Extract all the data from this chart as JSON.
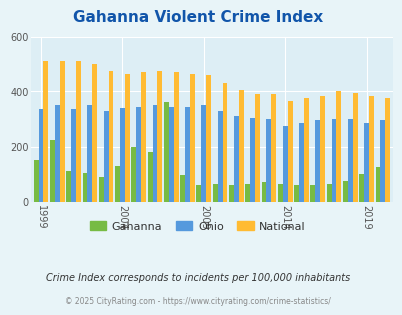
{
  "title": "Gahanna Violent Crime Index",
  "years": [
    1999,
    2000,
    2001,
    2002,
    2003,
    2004,
    2005,
    2006,
    2007,
    2008,
    2009,
    2010,
    2011,
    2012,
    2013,
    2014,
    2015,
    2016,
    2017,
    2018,
    2019,
    2020
  ],
  "gahanna": [
    150,
    225,
    110,
    105,
    90,
    130,
    200,
    180,
    360,
    95,
    60,
    65,
    60,
    65,
    70,
    65,
    60,
    60,
    65,
    75,
    100,
    125
  ],
  "ohio": [
    335,
    350,
    335,
    350,
    330,
    340,
    345,
    350,
    345,
    345,
    350,
    330,
    310,
    305,
    300,
    275,
    285,
    295,
    300,
    300,
    285,
    295
  ],
  "national": [
    510,
    510,
    510,
    500,
    475,
    465,
    470,
    475,
    470,
    465,
    460,
    430,
    405,
    390,
    390,
    365,
    375,
    385,
    400,
    395,
    385,
    375
  ],
  "gahanna_color": "#77bb44",
  "ohio_color": "#5599dd",
  "national_color": "#ffbb33",
  "bg_color": "#e8f4f8",
  "plot_bg": "#ddeef5",
  "title_color": "#1155aa",
  "tick_label_color": "#555555",
  "footer_text": "Crime Index corresponds to incidents per 100,000 inhabitants",
  "copyright_text": "© 2025 CityRating.com - https://www.cityrating.com/crime-statistics/",
  "ylim": [
    0,
    600
  ],
  "yticks": [
    0,
    200,
    400,
    600
  ],
  "xtick_labels": [
    "1999",
    "2004",
    "2009",
    "2014",
    "2019"
  ],
  "xtick_positions": [
    1999,
    2004,
    2009,
    2014,
    2019
  ]
}
